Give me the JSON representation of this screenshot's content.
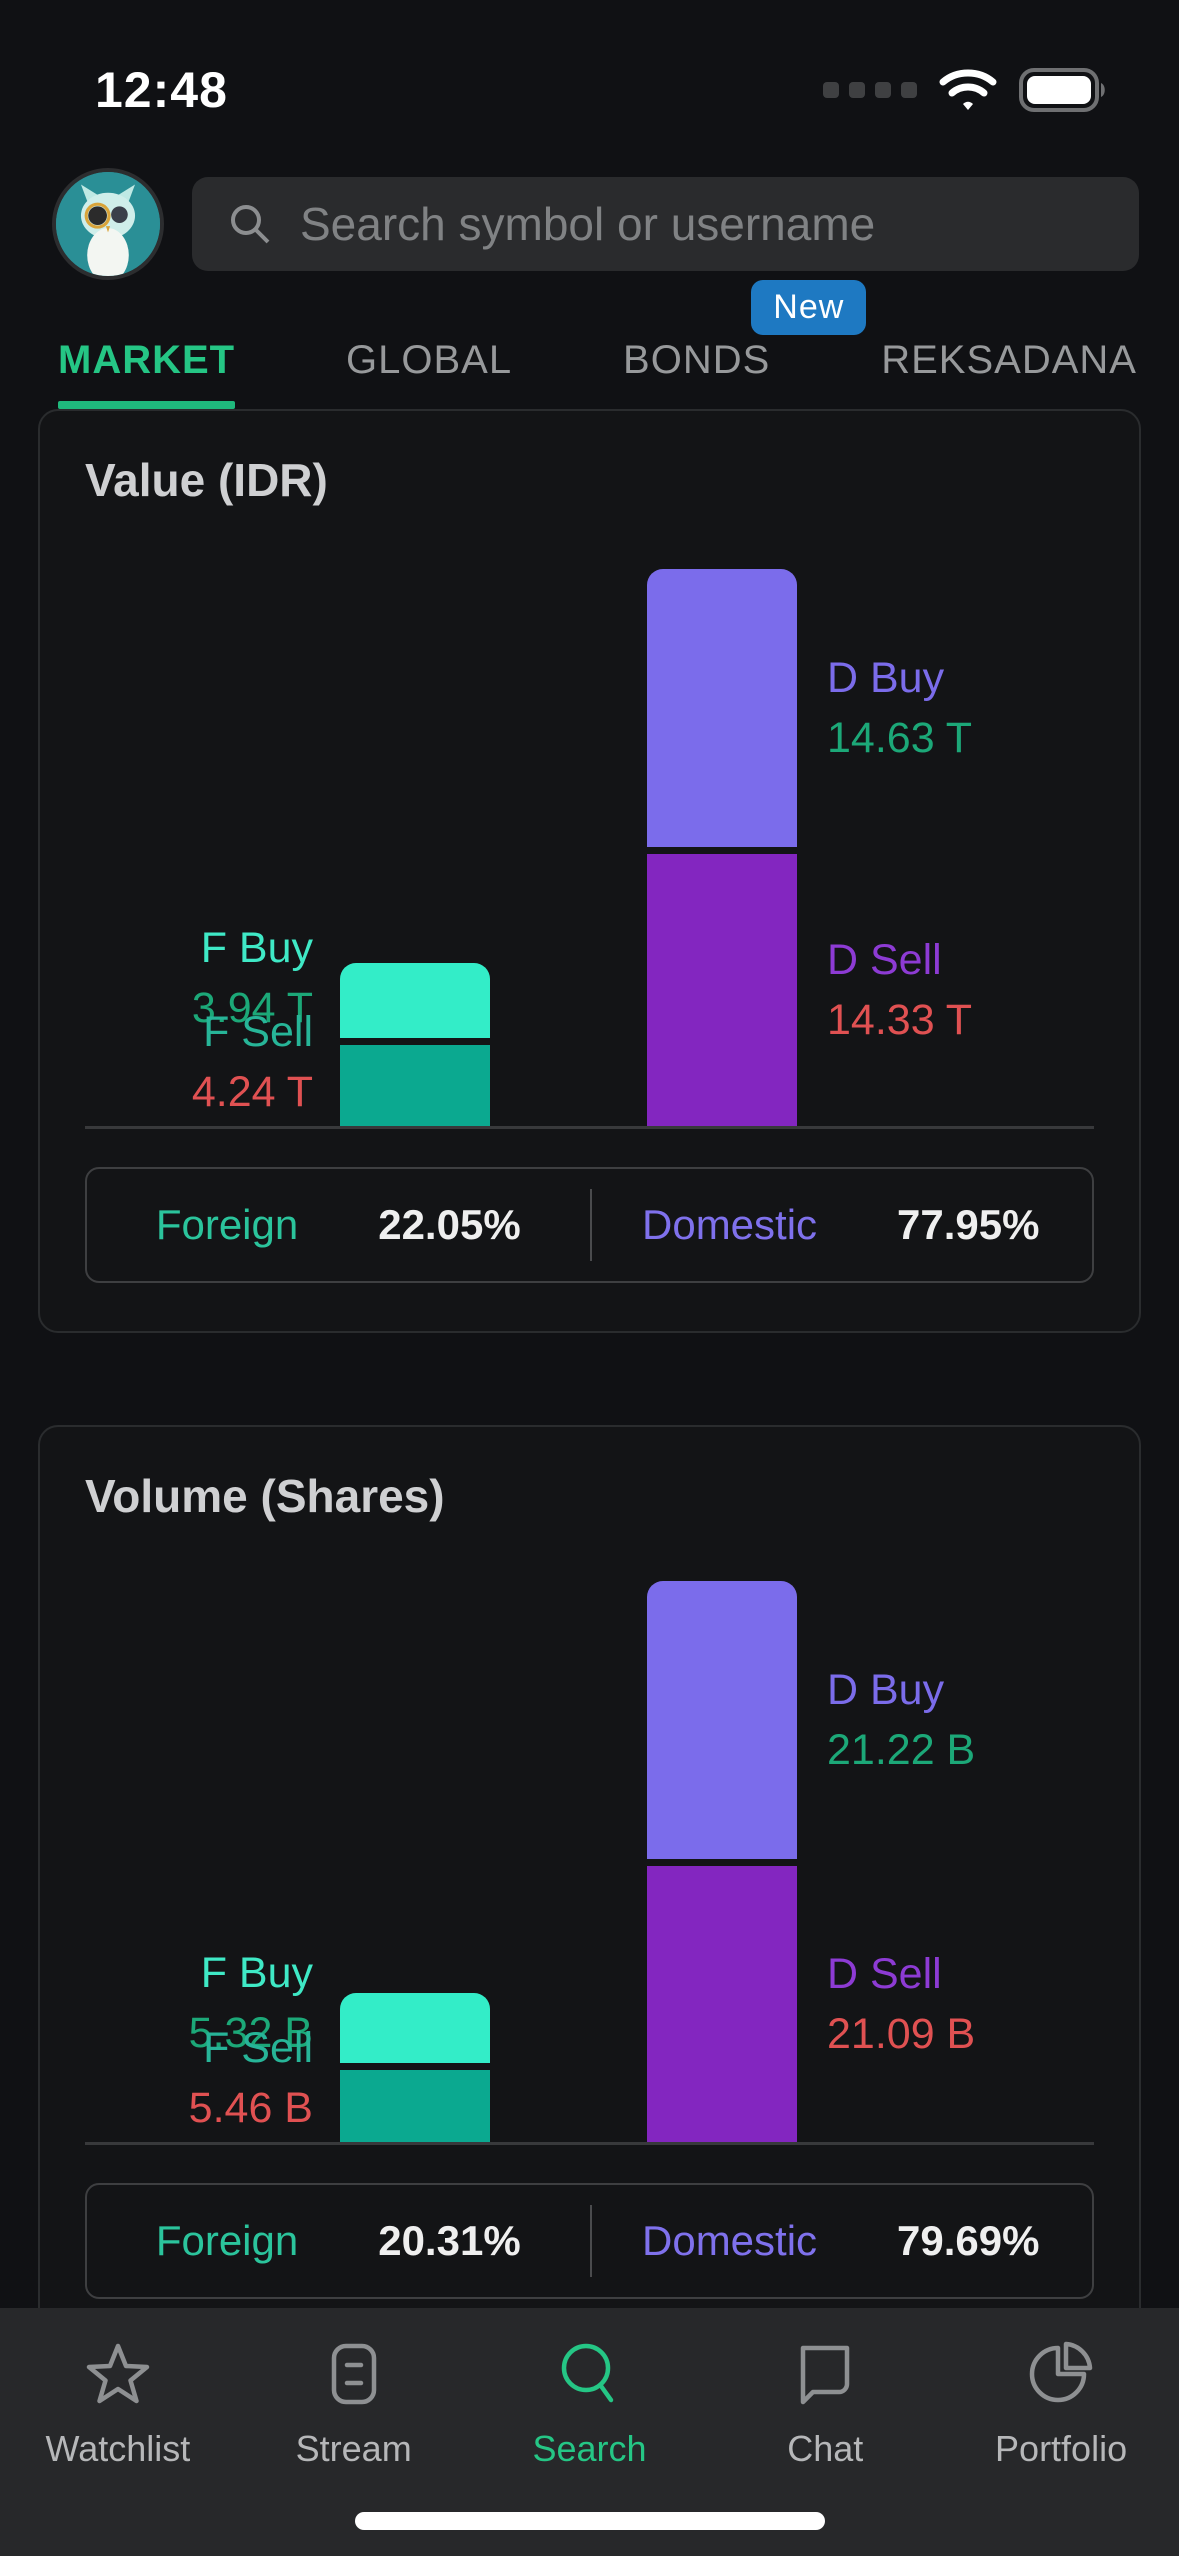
{
  "status_bar": {
    "time": "12:48"
  },
  "header": {
    "search_placeholder": "Search symbol or username"
  },
  "tabs": {
    "items": [
      {
        "label": "MARKET",
        "active": true
      },
      {
        "label": "GLOBAL",
        "active": false
      },
      {
        "label": "BONDS",
        "active": false,
        "badge": "New"
      },
      {
        "label": "REKSADANA",
        "active": false
      }
    ]
  },
  "colors": {
    "accent_green": "#25c685",
    "foreign_buy_bar": "#33edc8",
    "foreign_sell_bar": "#0ba990",
    "domestic_buy_bar": "#7b6ceb",
    "domestic_sell_bar": "#8326c0",
    "positive_value": "#1ca878",
    "negative_value": "#e05152",
    "badge_blue": "#1e79c2"
  },
  "cards": [
    {
      "title": "Value (IDR)",
      "chart_data": {
        "type": "bar",
        "unit": "T (trillion IDR)",
        "bars": [
          {
            "name": "F Buy",
            "value": 3.94,
            "label": "3.94 T",
            "group": "foreign",
            "kind": "buy"
          },
          {
            "name": "F Sell",
            "value": 4.24,
            "label": "4.24 T",
            "group": "foreign",
            "kind": "sell"
          },
          {
            "name": "D Buy",
            "value": 14.63,
            "label": "14.63 T",
            "group": "domestic",
            "kind": "buy"
          },
          {
            "name": "D Sell",
            "value": 14.33,
            "label": "14.33 T",
            "group": "domestic",
            "kind": "sell"
          }
        ],
        "legend_position": "beside-bars",
        "grid": false
      },
      "summary": {
        "foreign_label": "Foreign",
        "foreign_value": "22.05%",
        "domestic_label": "Domestic",
        "domestic_value": "77.95%"
      }
    },
    {
      "title": "Volume (Shares)",
      "chart_data": {
        "type": "bar",
        "unit": "B (billion shares)",
        "bars": [
          {
            "name": "F Buy",
            "value": 5.32,
            "label": "5.32 B",
            "group": "foreign",
            "kind": "buy"
          },
          {
            "name": "F Sell",
            "value": 5.46,
            "label": "5.46 B",
            "group": "foreign",
            "kind": "sell"
          },
          {
            "name": "D Buy",
            "value": 21.22,
            "label": "21.22 B",
            "group": "domestic",
            "kind": "buy"
          },
          {
            "name": "D Sell",
            "value": 21.09,
            "label": "21.09 B",
            "group": "domestic",
            "kind": "sell"
          }
        ],
        "legend_position": "beside-bars",
        "grid": false
      },
      "summary": {
        "foreign_label": "Foreign",
        "foreign_value": "20.31%",
        "domestic_label": "Domestic",
        "domestic_value": "79.69%"
      }
    }
  ],
  "bottom_nav": {
    "active": "Search",
    "items": [
      {
        "label": "Watchlist"
      },
      {
        "label": "Stream"
      },
      {
        "label": "Search"
      },
      {
        "label": "Chat"
      },
      {
        "label": "Portfolio"
      }
    ]
  }
}
